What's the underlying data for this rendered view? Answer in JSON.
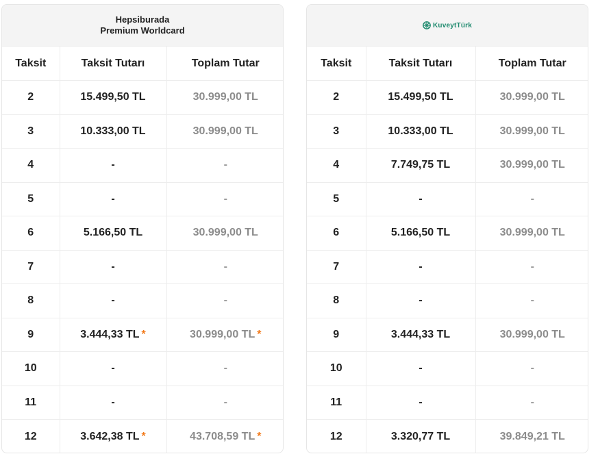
{
  "left_card": {
    "title_line1": "Hepsiburada",
    "title_line2": "Premium Worldcard",
    "headers": [
      "Taksit",
      "Taksit Tutarı",
      "Toplam Tutar"
    ],
    "rows": [
      {
        "taksit": "2",
        "tutar": "15.499,50 TL",
        "toplam": "30.999,00 TL",
        "star": false
      },
      {
        "taksit": "3",
        "tutar": "10.333,00 TL",
        "toplam": "30.999,00 TL",
        "star": false
      },
      {
        "taksit": "4",
        "tutar": "-",
        "toplam": "-",
        "star": false
      },
      {
        "taksit": "5",
        "tutar": "-",
        "toplam": "-",
        "star": false
      },
      {
        "taksit": "6",
        "tutar": "5.166,50 TL",
        "toplam": "30.999,00 TL",
        "star": false
      },
      {
        "taksit": "7",
        "tutar": "-",
        "toplam": "-",
        "star": false
      },
      {
        "taksit": "8",
        "tutar": "-",
        "toplam": "-",
        "star": false
      },
      {
        "taksit": "9",
        "tutar": "3.444,33 TL",
        "toplam": "30.999,00 TL",
        "star": true
      },
      {
        "taksit": "10",
        "tutar": "-",
        "toplam": "-",
        "star": false
      },
      {
        "taksit": "11",
        "tutar": "-",
        "toplam": "-",
        "star": false
      },
      {
        "taksit": "12",
        "tutar": "3.642,38 TL",
        "toplam": "43.708,59 TL",
        "star": true
      }
    ]
  },
  "right_card": {
    "logo_text": "KuveytTürk",
    "logo_icon": "kuveytturk-logo-icon",
    "headers": [
      "Taksit",
      "Taksit Tutarı",
      "Toplam Tutar"
    ],
    "rows": [
      {
        "taksit": "2",
        "tutar": "15.499,50 TL",
        "toplam": "30.999,00 TL",
        "star": false
      },
      {
        "taksit": "3",
        "tutar": "10.333,00 TL",
        "toplam": "30.999,00 TL",
        "star": false
      },
      {
        "taksit": "4",
        "tutar": "7.749,75 TL",
        "toplam": "30.999,00 TL",
        "star": false
      },
      {
        "taksit": "5",
        "tutar": "-",
        "toplam": "-",
        "star": false
      },
      {
        "taksit": "6",
        "tutar": "5.166,50 TL",
        "toplam": "30.999,00 TL",
        "star": false
      },
      {
        "taksit": "7",
        "tutar": "-",
        "toplam": "-",
        "star": false
      },
      {
        "taksit": "8",
        "tutar": "-",
        "toplam": "-",
        "star": false
      },
      {
        "taksit": "9",
        "tutar": "3.444,33 TL",
        "toplam": "30.999,00 TL",
        "star": false
      },
      {
        "taksit": "10",
        "tutar": "-",
        "toplam": "-",
        "star": false
      },
      {
        "taksit": "11",
        "tutar": "-",
        "toplam": "-",
        "star": false
      },
      {
        "taksit": "12",
        "tutar": "3.320,77 TL",
        "toplam": "39.849,21 TL",
        "star": false
      }
    ]
  },
  "star_symbol": "*",
  "colors": {
    "star": "#f27a1a",
    "total_text": "#8c8c8c",
    "brand_green": "#1f8a6e"
  }
}
